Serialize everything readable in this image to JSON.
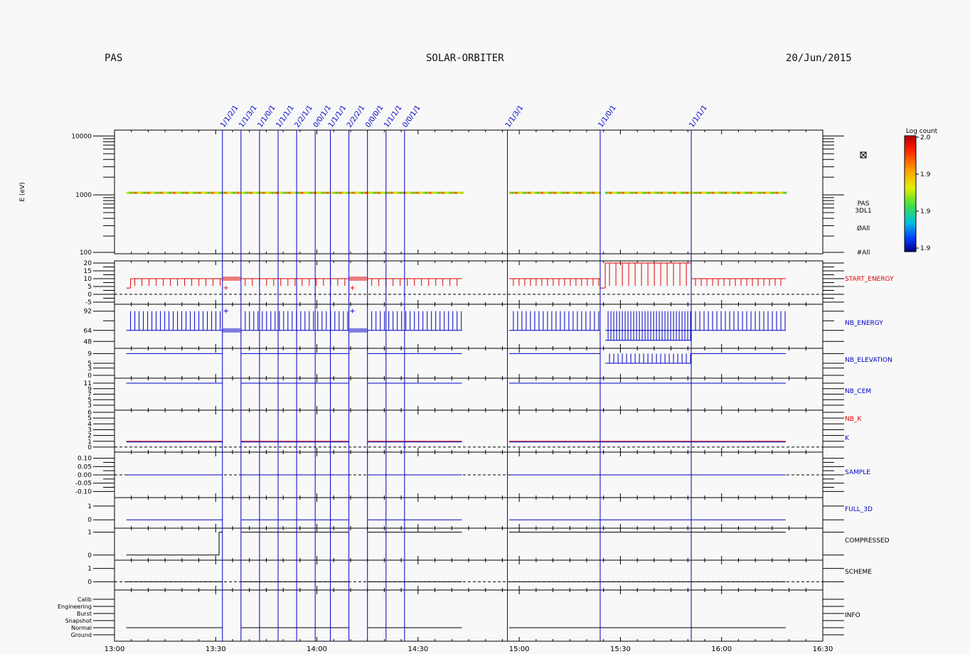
{
  "header": {
    "instrument": "PAS",
    "mission": "SOLAR-ORBITER",
    "date": "20/Jun/2015"
  },
  "colors": {
    "red": "#e00000",
    "blue": "#0000c8",
    "black": "#000000"
  },
  "colorbar": {
    "title": "Log count",
    "ticks": [
      "2.0",
      "1.9",
      "1.9",
      "1.9"
    ]
  },
  "time_axis": {
    "ticks": [
      "13:00",
      "13:30",
      "14:00",
      "14:30",
      "15:00",
      "15:30",
      "16:00",
      "16:30"
    ],
    "range_hours": [
      13.0,
      16.5
    ]
  },
  "mode_markers": [
    {
      "t": "13:32",
      "label": "1/1/2/1"
    },
    {
      "t": "13:37.5",
      "label": "1/1/3/1"
    },
    {
      "t": "13:43",
      "label": "1/1/0/1"
    },
    {
      "t": "13:48.5",
      "label": "1/1/1/1"
    },
    {
      "t": "13:54",
      "label": "2/2/1/1"
    },
    {
      "t": "13:59.5",
      "label": "0/0/1/1"
    },
    {
      "t": "14:04",
      "label": "1/1/1/1"
    },
    {
      "t": "14:09.5",
      "label": "2/2/2/1"
    },
    {
      "t": "14:15",
      "label": "0/0/0/1"
    },
    {
      "t": "14:20.5",
      "label": "1/1/1/1"
    },
    {
      "t": "14:26",
      "label": "0/0/1/1"
    },
    {
      "t": "14:56.5",
      "label": "1/1/3/1"
    },
    {
      "t": "15:24",
      "label": "1/1/0/1"
    },
    {
      "t": "15:51",
      "label": "1/1/1/1"
    }
  ],
  "panels": [
    {
      "id": "spectrogram",
      "ylabel": "E (eV)",
      "ticks": [
        "10000",
        "1000",
        "100"
      ],
      "right_labels": [
        "PAS",
        "3DL1",
        "ØAll",
        "#All"
      ],
      "data_intervals": [
        [
          "13:03.5",
          "14:43"
        ],
        [
          "14:57",
          "15:24"
        ],
        [
          "15:25.5",
          "16:19"
        ]
      ],
      "energy_eV": 1100
    },
    {
      "id": "start_energy",
      "name": "START_ENERGY",
      "ticks": [
        "20",
        "15",
        "10",
        "5",
        "0",
        "-5"
      ],
      "values": {
        "low": 4,
        "mid": 10,
        "high": 20
      }
    },
    {
      "id": "nb_energy",
      "name": "NB_ENERGY",
      "ticks": [
        "92",
        "64",
        "48"
      ],
      "values": {
        "low": 64,
        "high": 92
      }
    },
    {
      "id": "nb_elevation",
      "name": "NB_ELEVATION",
      "ticks": [
        "9",
        "5",
        "3",
        "0"
      ],
      "values": {
        "normal": 9,
        "low": 5,
        "high": 9
      }
    },
    {
      "id": "nb_cem",
      "name": "NB_CEM",
      "ticks": [
        "11",
        "9",
        "7",
        "5",
        "3"
      ],
      "values": {
        "normal": 11
      }
    },
    {
      "id": "nb_k",
      "name": "NB_K",
      "name2": "K",
      "ticks": [
        "6",
        "5",
        "4",
        "3",
        "2",
        "1",
        "0"
      ],
      "values": {
        "normal": 1
      }
    },
    {
      "id": "sample",
      "name": "SAMPLE",
      "ticks": [
        "0.10",
        "0.05",
        "0.00",
        "-0.05",
        "-0.10"
      ],
      "values": {
        "normal": 0.0
      }
    },
    {
      "id": "full_3d",
      "name": "FULL_3D",
      "ticks": [
        "1",
        "0"
      ],
      "values": {
        "normal": 0
      }
    },
    {
      "id": "compressed",
      "name": "COMPRESSED",
      "ticks": [
        "1",
        "0"
      ],
      "values": {
        "before": 0,
        "after": 1
      }
    },
    {
      "id": "scheme",
      "name": "SCHEME",
      "ticks": [
        "1",
        "0"
      ],
      "values": {
        "normal": 0
      }
    },
    {
      "id": "info",
      "name": "INFO",
      "ticks": [
        "Calib",
        "Engineering",
        "Burst",
        "Snapshot",
        "Normal",
        "Ground"
      ],
      "values": {
        "state": "Normal"
      }
    }
  ]
}
